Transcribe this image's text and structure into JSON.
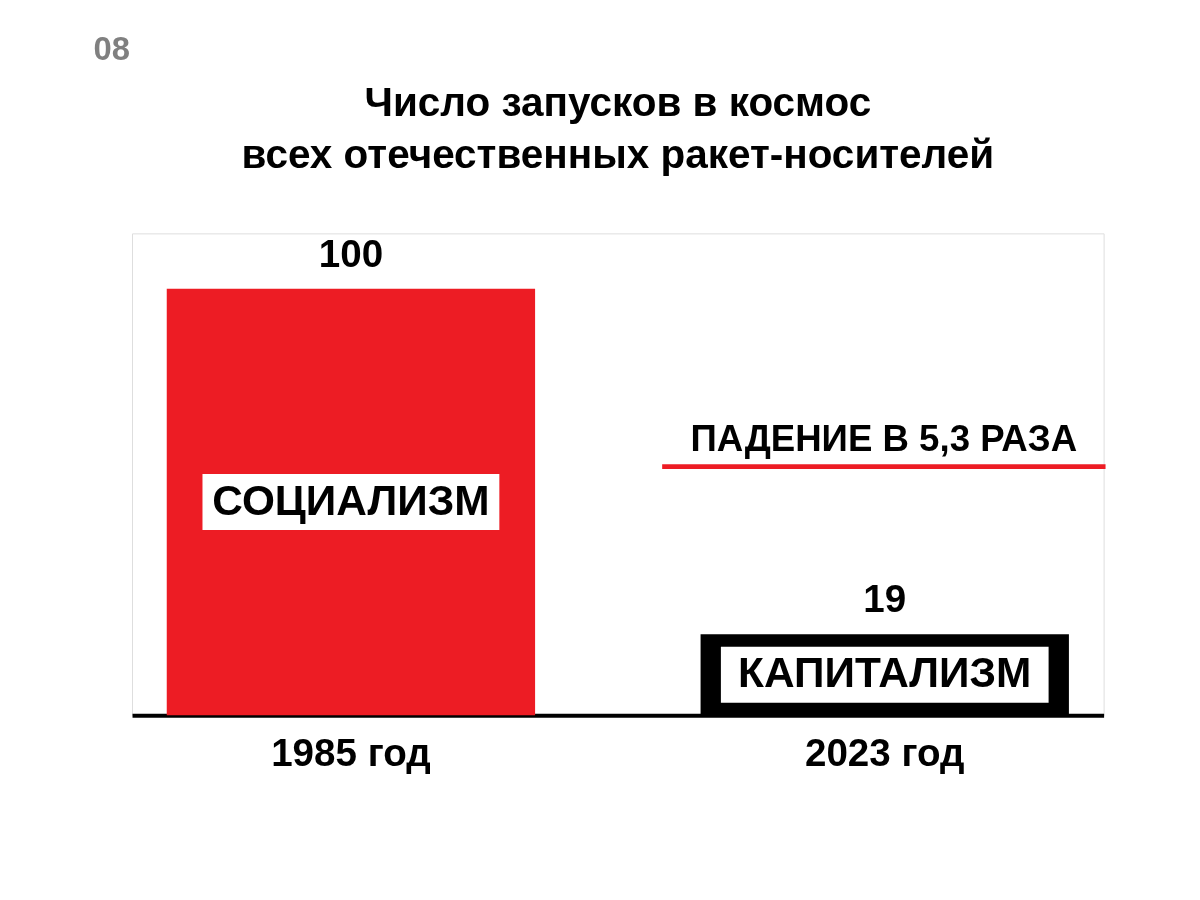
{
  "chart_data": {
    "type": "bar",
    "title": [
      "Число запусков в космос",
      "всех отечественных ракет-носителей"
    ],
    "categories": [
      "1985 год",
      "2023 год"
    ],
    "values": [
      100,
      19
    ],
    "colors": [
      "#ed1c24",
      "#000000"
    ],
    "data_labels": true,
    "annotations": [
      "08",
      "СОЦИАЛИЗМ",
      "КАПИТАЛИЗМ",
      "ПАДЕНИЕ В 5,3 РАЗА"
    ]
  }
}
